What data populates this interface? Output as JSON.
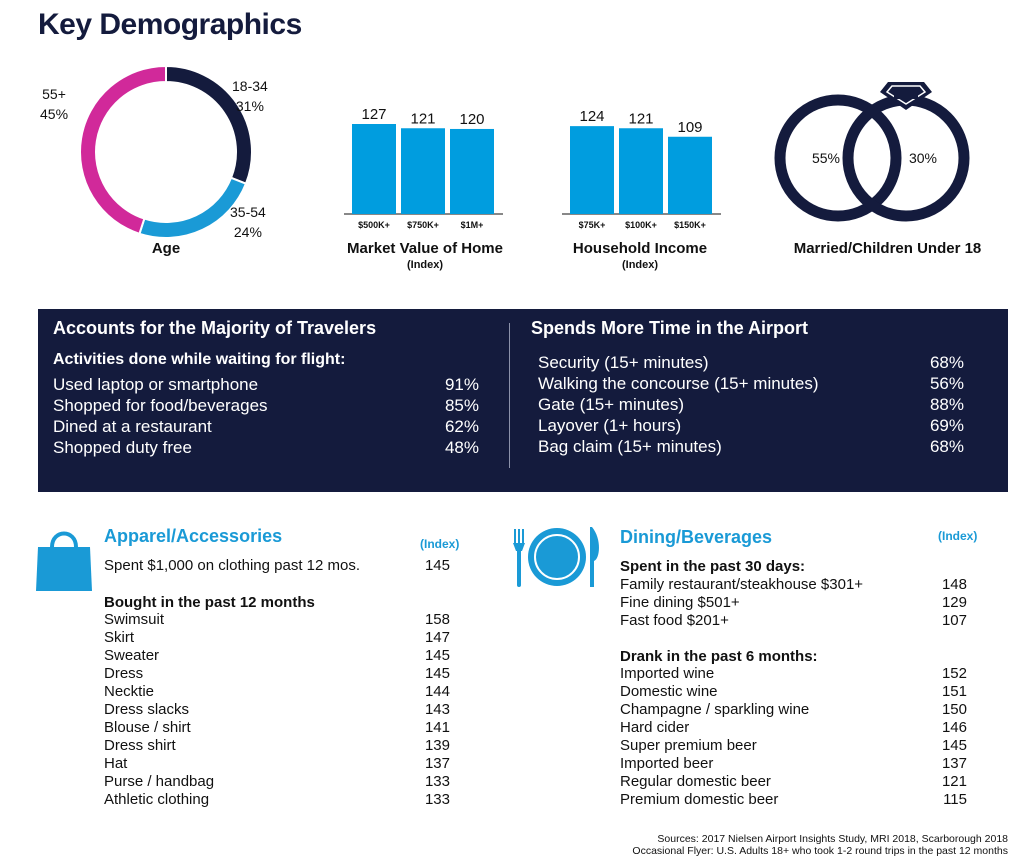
{
  "title": "Key Demographics",
  "colors": {
    "navy": "#141b3d",
    "magenta": "#d1299a",
    "blue": "#1a9ad6",
    "bar": "#009ddf"
  },
  "chart_data": [
    {
      "type": "pie",
      "title": "Age",
      "segments": [
        {
          "label": "18-34",
          "value": 31,
          "display": "31%",
          "color": "#141b3d"
        },
        {
          "label": "35-54",
          "value": 24,
          "display": "24%",
          "color": "#1a9ad6"
        },
        {
          "label": "55+",
          "value": 45,
          "display": "45%",
          "color": "#d1299a"
        }
      ]
    },
    {
      "type": "bar",
      "title": "Market Value of Home",
      "subtitle": "(Index)",
      "categories": [
        "$500K+",
        "$750K+",
        "$1M+"
      ],
      "values": [
        127,
        121,
        120
      ]
    },
    {
      "type": "bar",
      "title": "Household Income",
      "subtitle": "(Index)",
      "categories": [
        "$75K+",
        "$100K+",
        "$150K+"
      ],
      "values": [
        124,
        121,
        109
      ]
    }
  ],
  "married": {
    "title": "Married/Children Under 18",
    "married_pct": "55%",
    "children_pct": "30%"
  },
  "travelers": {
    "title": "Accounts for the Majority of Travelers",
    "subtitle": "Activities done while waiting for flight:",
    "rows": [
      {
        "label": "Used laptop or smartphone",
        "value": "91%"
      },
      {
        "label": "Shopped for food/beverages",
        "value": "85%"
      },
      {
        "label": "Dined at a restaurant",
        "value": "62%"
      },
      {
        "label": "Shopped duty free",
        "value": "48%"
      }
    ]
  },
  "airport": {
    "title": "Spends More Time in the Airport",
    "rows": [
      {
        "label": "Security (15+ minutes)",
        "value": "68%"
      },
      {
        "label": "Walking the concourse (15+ minutes)",
        "value": "56%"
      },
      {
        "label": "Gate (15+ minutes)",
        "value": "88%"
      },
      {
        "label": "Layover (1+ hours)",
        "value": "69%"
      },
      {
        "label": "Bag claim (15+ minutes)",
        "value": "68%"
      }
    ]
  },
  "apparel": {
    "title": "Apparel/Accessories",
    "index_label": "(Index)",
    "icon": "shopping-bag-icon",
    "spent": {
      "label": "Spent $1,000 on clothing past 12 mos.",
      "value": "145"
    },
    "bought_heading": "Bought in the past 12 months",
    "items": [
      {
        "label": "Swimsuit",
        "value": "158"
      },
      {
        "label": "Skirt",
        "value": "147"
      },
      {
        "label": "Sweater",
        "value": "145"
      },
      {
        "label": "Dress",
        "value": "145"
      },
      {
        "label": "Necktie",
        "value": "144"
      },
      {
        "label": "Dress slacks",
        "value": "143"
      },
      {
        "label": "Blouse / shirt",
        "value": "141"
      },
      {
        "label": "Dress shirt",
        "value": "139"
      },
      {
        "label": "Hat",
        "value": "137"
      },
      {
        "label": "Purse / handbag",
        "value": "133"
      },
      {
        "label": "Athletic clothing",
        "value": "133"
      }
    ]
  },
  "dining": {
    "title": "Dining/Beverages",
    "index_label": "(Index)",
    "icon": "plate-fork-knife-icon",
    "spent_heading": "Spent in the past 30 days:",
    "spent_items": [
      {
        "label": "Family restaurant/steakhouse $301+",
        "value": "148"
      },
      {
        "label": "Fine dining $501+",
        "value": "129"
      },
      {
        "label": "Fast food $201+",
        "value": "107"
      }
    ],
    "drank_heading": "Drank in the past 6 months:",
    "drank_items": [
      {
        "label": "Imported wine",
        "value": "152"
      },
      {
        "label": "Domestic wine",
        "value": "151"
      },
      {
        "label": "Champagne / sparkling wine",
        "value": "150"
      },
      {
        "label": "Hard cider",
        "value": "146"
      },
      {
        "label": "Super premium beer",
        "value": "145"
      },
      {
        "label": "Imported beer",
        "value": "137"
      },
      {
        "label": "Regular domestic beer",
        "value": "121"
      },
      {
        "label": "Premium domestic beer",
        "value": "115"
      }
    ]
  },
  "sources": {
    "line1": "Sources: 2017 Nielsen Airport Insights Study, MRI 2018, Scarborough 2018",
    "line2": "Occasional Flyer: U.S. Adults 18+ who took 1-2 round trips in the past 12 months"
  }
}
